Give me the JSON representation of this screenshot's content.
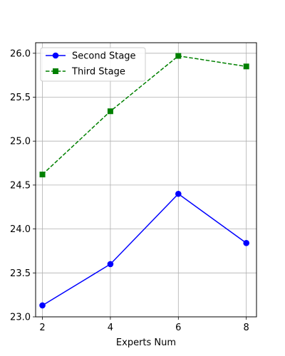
{
  "chart_data": {
    "type": "line",
    "title": "",
    "xlabel": "Experts Num",
    "ylabel": "",
    "x": [
      2,
      4,
      6,
      8
    ],
    "xticks": [
      2,
      4,
      6,
      8
    ],
    "yticks": [
      23.0,
      23.5,
      24.0,
      24.5,
      25.0,
      25.5,
      26.0
    ],
    "ytick_labels": [
      "23.0",
      "23.5",
      "24.0",
      "24.5",
      "25.0",
      "25.5",
      "26.0"
    ],
    "xlim": [
      1.8,
      8.3
    ],
    "ylim": [
      23.0,
      26.12
    ],
    "grid": true,
    "legend_position": "top-left",
    "series": [
      {
        "name": "Second Stage",
        "values": [
          23.13,
          23.6,
          24.4,
          23.84
        ],
        "color": "#0000ff",
        "line_style": "solid",
        "marker": "circle"
      },
      {
        "name": "Third Stage",
        "values": [
          24.62,
          25.34,
          25.97,
          25.85
        ],
        "color": "#008000",
        "line_style": "dashed",
        "marker": "square"
      }
    ]
  }
}
